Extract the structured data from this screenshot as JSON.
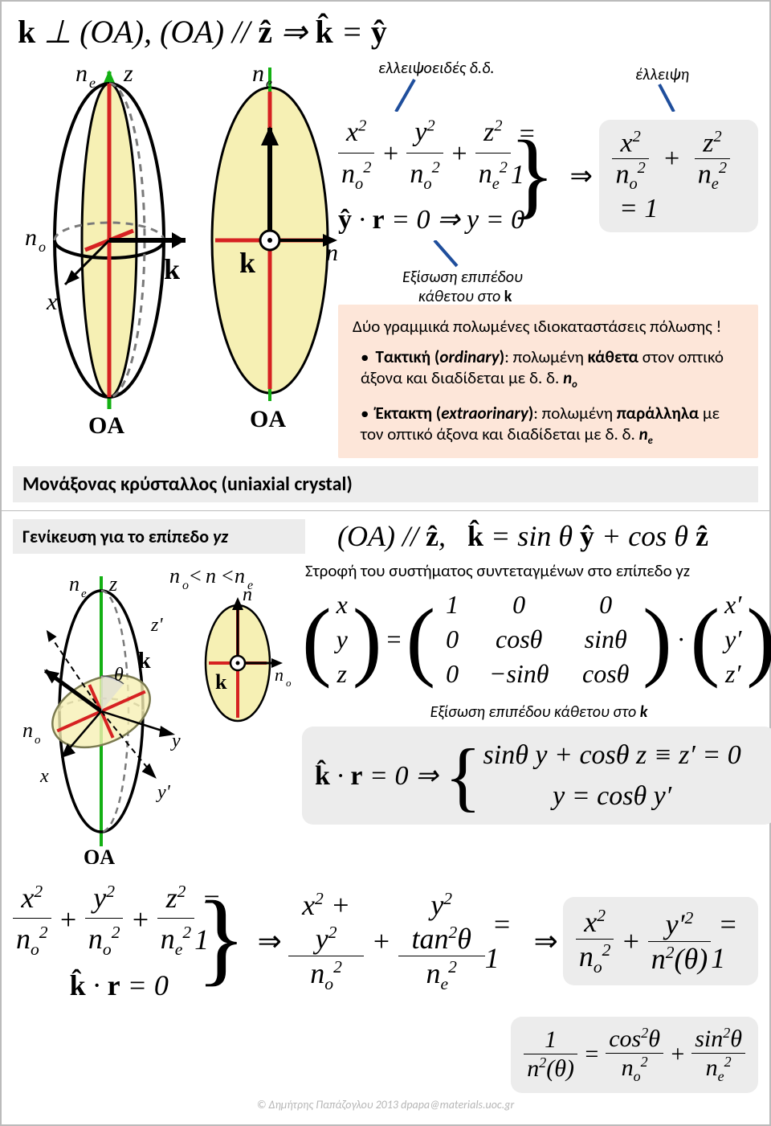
{
  "panel1": {
    "headline_html": "<span class='mb upright'>k</span> ⊥ (OA), (<span style='font-style:italic'>OA</span>) // <span class='mb upright'>ẑ</span> ⇒ <span class='mb upright'>k̂</span> = <span class='mb upright'>ŷ</span>",
    "annot_ellipsoid": "ελλειψοειδές δ.δ.",
    "annot_ellipse": "έλλειψη",
    "annot_plane_eq": "Εξίσωση επιπέδου κάθετου στο <b>k</b>",
    "orange_title": "Δύο γραμμικά πολωμένες ιδιοκαταστάσεις πόλωσης !",
    "orange_b1": "<b>Τακτική (<i>ordinary</i>)</b>: πολωμένη <b>κάθετα</b> στον οπτικό άξονα και διαδίδεται με δ. δ. <b><i>n<sub>o</sub></i></b>",
    "orange_b2": "<b>Έκτακτη (<i>extraorinary</i>)</b>: πολωμένη <b>παράλληλα</b> με τον οπτικό άξονα και διαδίδεται με δ. δ. <b><i>n<sub>e</sub></i></b>",
    "bottomBar": "Μονάξονας κρύσταλλος (uniaxial crystal)",
    "labels": {
      "ne": "n",
      "ne_sub": "e",
      "no": "n",
      "no_sub": "o",
      "z": "z",
      "x": "x",
      "k": "k",
      "OA": "OA"
    },
    "colors": {
      "green": "#13b013",
      "red": "#d62222",
      "yellow": "#f6f0b4",
      "dash": "#7a7a7a"
    }
  },
  "panel2": {
    "subBar": "Γενίκευση για το επίπεδο <i>yz</i>",
    "topEq_html": "(<span style='font-style:italic'>OA</span>) // <span class='mb upright'>ẑ</span>,&nbsp;&nbsp; <span class='mb upright'>k̂</span> = sin <span style='font-style:italic'>θ</span> <span class='mb upright'>ŷ</span> + cos <span style='font-style:italic'>θ</span> <span class='mb upright'>ẑ</span>",
    "rotation_caption": "Στροφή του συστήματος συντεταγμένων στο επίπεδο yz",
    "plane_caption": "Εξίσωση επιπέδου κάθετου στο <b>k</b>",
    "ineq_html": "<span style='font-style:italic'>n<sub>o</sub></span>&lt; <span style='font-style:italic'>n</span> &lt;<span style='font-style:italic'>n<sub>e</sub></span>",
    "labels": {
      "ne": "n",
      "ne_sub": "e",
      "no": "n",
      "no_sub": "o",
      "n": "n",
      "z": "z",
      "zp": "z'",
      "y": "y",
      "yp": "y'",
      "x": "x",
      "k": "k",
      "theta": "θ",
      "OA": "OA"
    }
  },
  "footer": "© Δημήτρης Παπάζογλου   2013 dpapa@materials.uoc.gr"
}
